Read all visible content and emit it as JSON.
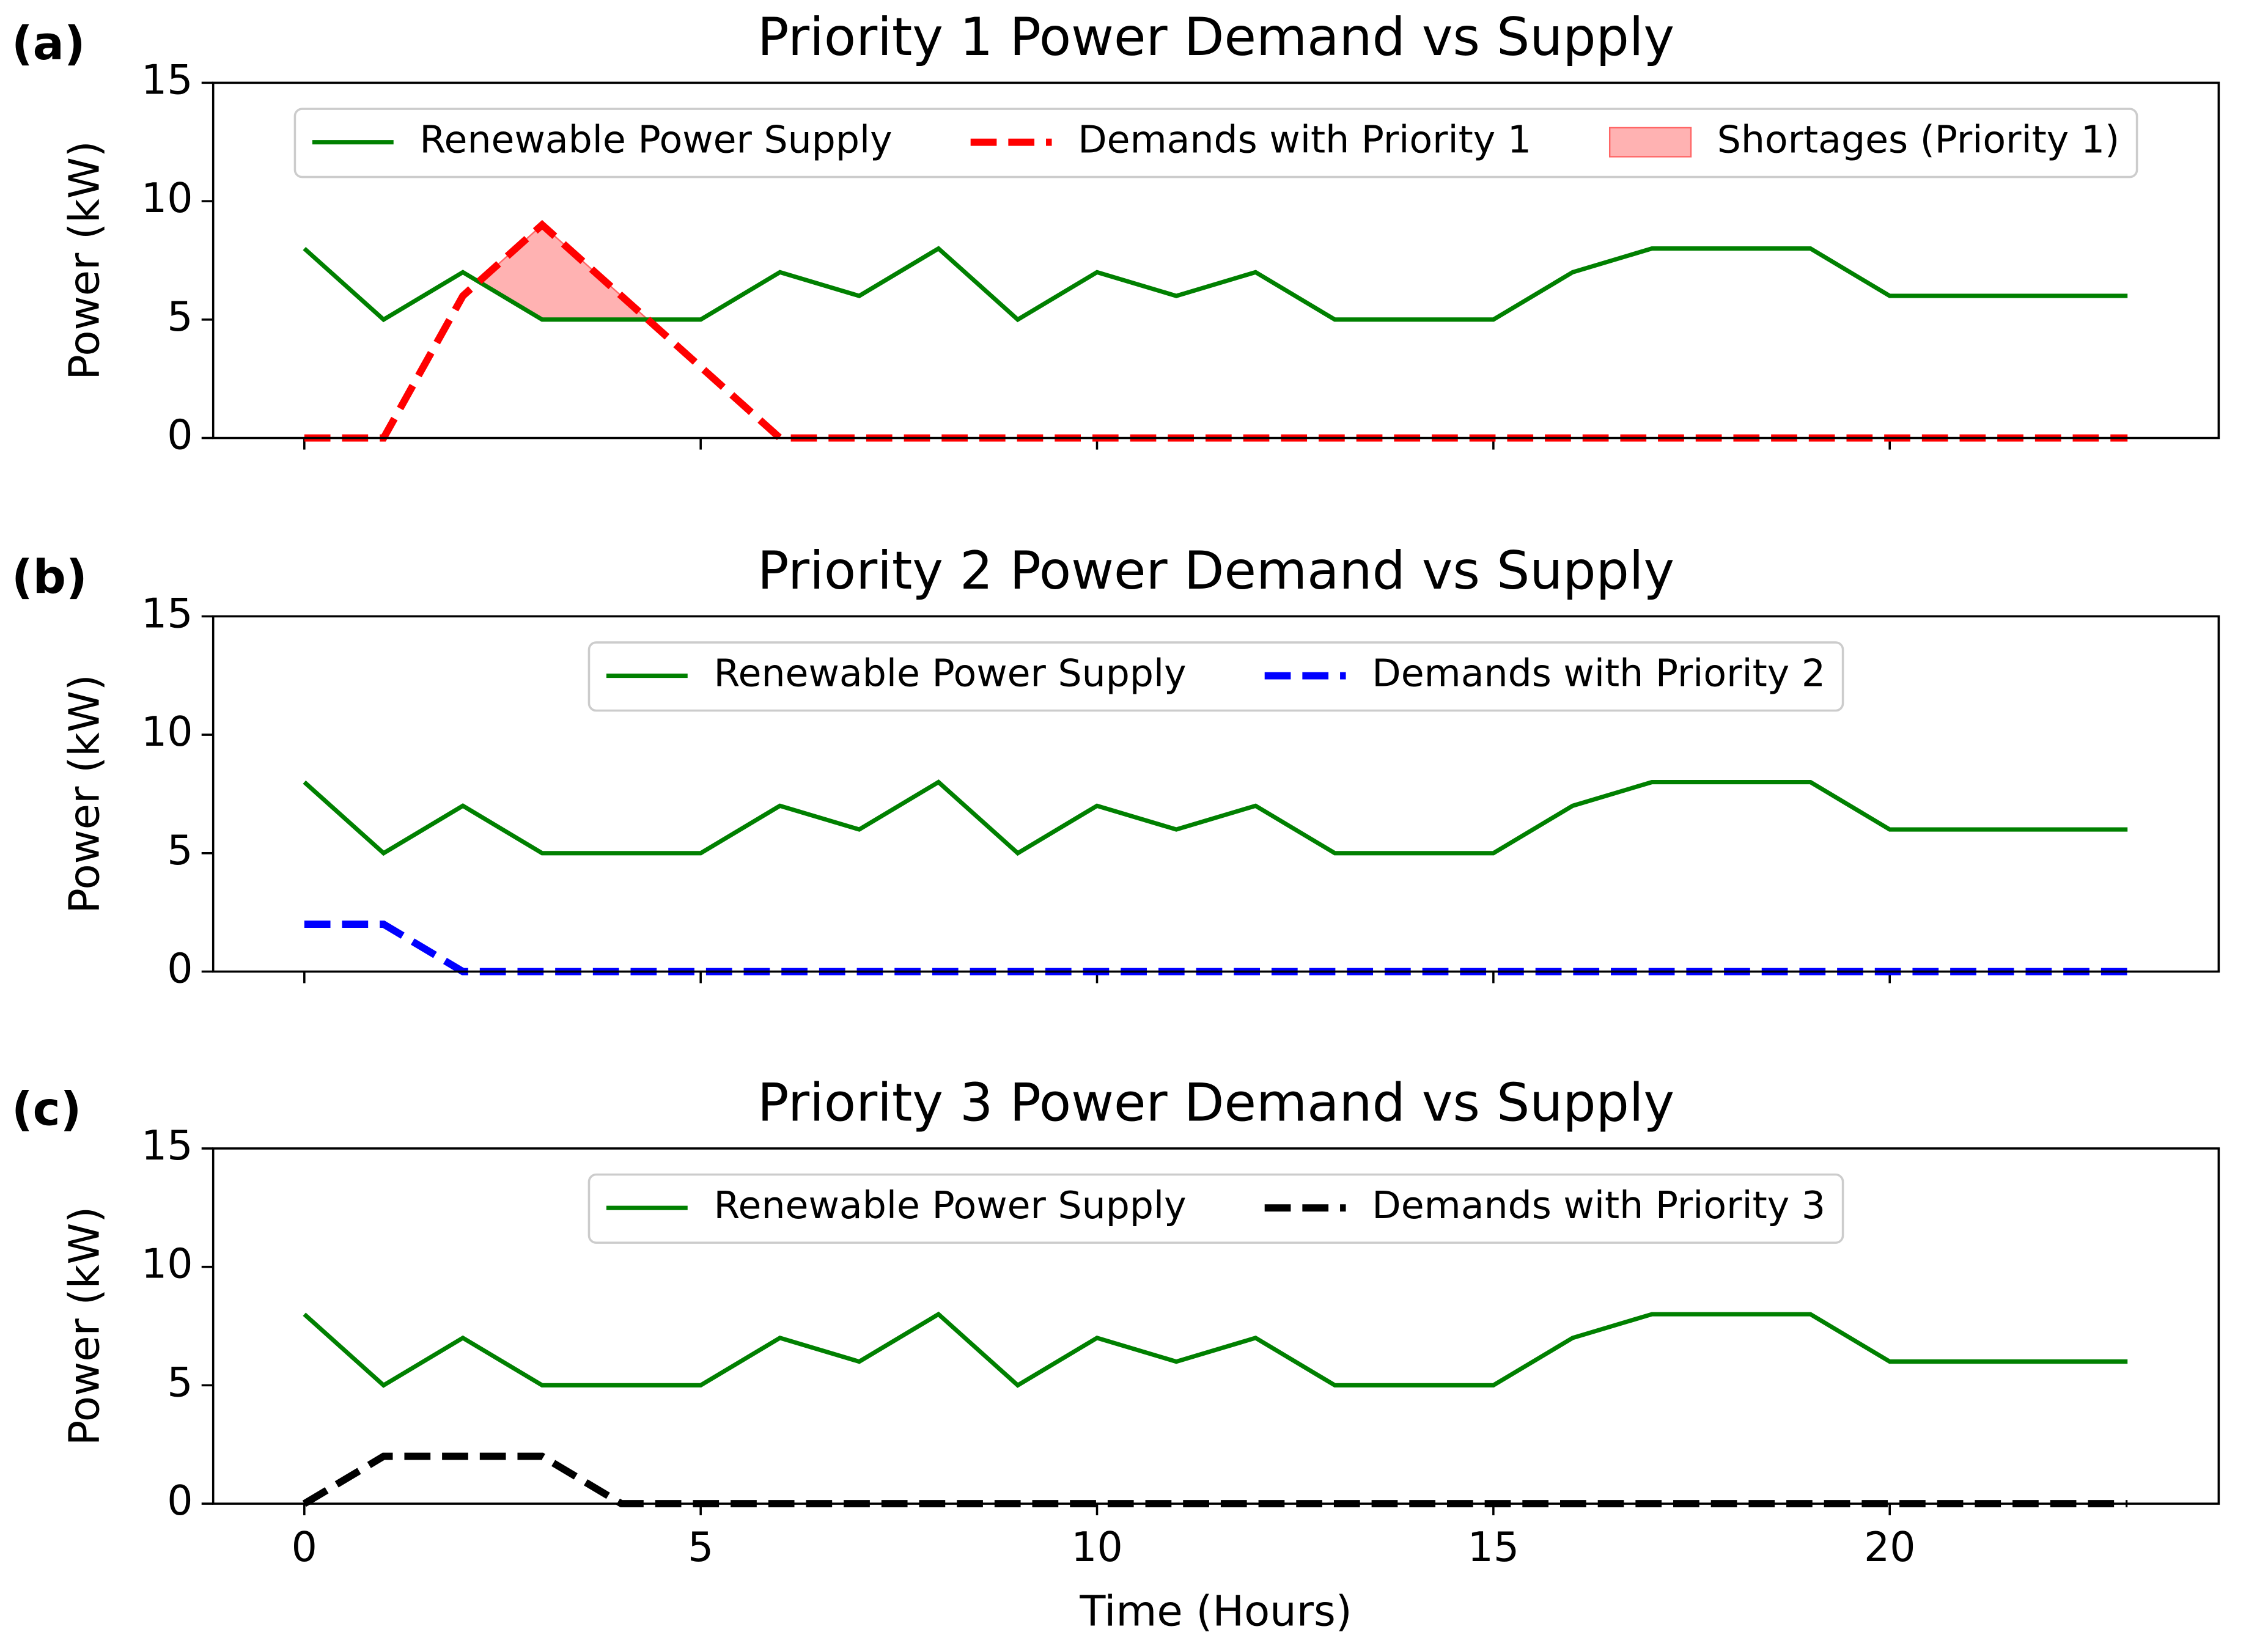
{
  "chart_data": [
    {
      "type": "line",
      "panel_label": "(a)",
      "title": "Priority 1 Power Demand vs Supply",
      "y_label": "Power (kW)",
      "x": [
        0,
        1,
        2,
        3,
        4,
        5,
        6,
        7,
        8,
        9,
        10,
        11,
        12,
        13,
        14,
        15,
        16,
        17,
        18,
        19,
        20,
        21,
        22,
        23
      ],
      "series": [
        {
          "name": "Renewable Power Supply",
          "color": "#008000",
          "dash": false,
          "values": [
            8,
            5,
            7,
            5,
            5,
            5,
            7,
            6,
            8,
            5,
            7,
            6,
            7,
            5,
            5,
            5,
            7,
            8,
            8,
            8,
            6,
            6,
            6,
            6
          ]
        },
        {
          "name": "Demands with Priority 1",
          "color": "#ff0000",
          "dash": true,
          "values": [
            0,
            0,
            6,
            9,
            6,
            3,
            0,
            0,
            0,
            0,
            0,
            0,
            0,
            0,
            0,
            0,
            0,
            0,
            0,
            0,
            0,
            0,
            0,
            0
          ]
        }
      ],
      "shortage": {
        "name": "Shortages (Priority 1)",
        "color": "#ff6666"
      },
      "xlim": [
        -1.15,
        24.15
      ],
      "xticks": [
        0,
        5,
        10,
        15,
        20
      ],
      "show_xtick_labels": false,
      "ylim": [
        0,
        15
      ],
      "yticks": [
        0,
        5,
        10,
        15
      ],
      "legend": "upper center"
    },
    {
      "type": "line",
      "panel_label": "(b)",
      "title": "Priority 2 Power Demand vs Supply",
      "y_label": "Power (kW)",
      "x": [
        0,
        1,
        2,
        3,
        4,
        5,
        6,
        7,
        8,
        9,
        10,
        11,
        12,
        13,
        14,
        15,
        16,
        17,
        18,
        19,
        20,
        21,
        22,
        23
      ],
      "series": [
        {
          "name": "Renewable Power Supply",
          "color": "#008000",
          "dash": false,
          "values": [
            8,
            5,
            7,
            5,
            5,
            5,
            7,
            6,
            8,
            5,
            7,
            6,
            7,
            5,
            5,
            5,
            7,
            8,
            8,
            8,
            6,
            6,
            6,
            6
          ]
        },
        {
          "name": "Demands with Priority 2",
          "color": "#0000ff",
          "dash": true,
          "values": [
            2,
            2,
            0,
            0,
            0,
            0,
            0,
            0,
            0,
            0,
            0,
            0,
            0,
            0,
            0,
            0,
            0,
            0,
            0,
            0,
            0,
            0,
            0,
            0
          ]
        }
      ],
      "xlim": [
        -1.15,
        24.15
      ],
      "xticks": [
        0,
        5,
        10,
        15,
        20
      ],
      "show_xtick_labels": false,
      "ylim": [
        0,
        15
      ],
      "yticks": [
        0,
        5,
        10,
        15
      ],
      "legend": "upper center"
    },
    {
      "type": "line",
      "panel_label": "(c)",
      "title": "Priority 3 Power Demand vs Supply",
      "y_label": "Power (kW)",
      "x_label": "Time (Hours)",
      "x": [
        0,
        1,
        2,
        3,
        4,
        5,
        6,
        7,
        8,
        9,
        10,
        11,
        12,
        13,
        14,
        15,
        16,
        17,
        18,
        19,
        20,
        21,
        22,
        23
      ],
      "series": [
        {
          "name": "Renewable Power Supply",
          "color": "#008000",
          "dash": false,
          "values": [
            8,
            5,
            7,
            5,
            5,
            5,
            7,
            6,
            8,
            5,
            7,
            6,
            7,
            5,
            5,
            5,
            7,
            8,
            8,
            8,
            6,
            6,
            6,
            6
          ]
        },
        {
          "name": "Demands with Priority 3",
          "color": "#000000",
          "dash": true,
          "values": [
            0,
            2,
            2,
            2,
            0,
            0,
            0,
            0,
            0,
            0,
            0,
            0,
            0,
            0,
            0,
            0,
            0,
            0,
            0,
            0,
            0,
            0,
            0,
            0
          ]
        }
      ],
      "xlim": [
        -1.15,
        24.15
      ],
      "xticks": [
        0,
        5,
        10,
        15,
        20
      ],
      "show_xtick_labels": true,
      "ylim": [
        0,
        15
      ],
      "yticks": [
        0,
        5,
        10,
        15
      ],
      "legend": "upper center"
    }
  ]
}
